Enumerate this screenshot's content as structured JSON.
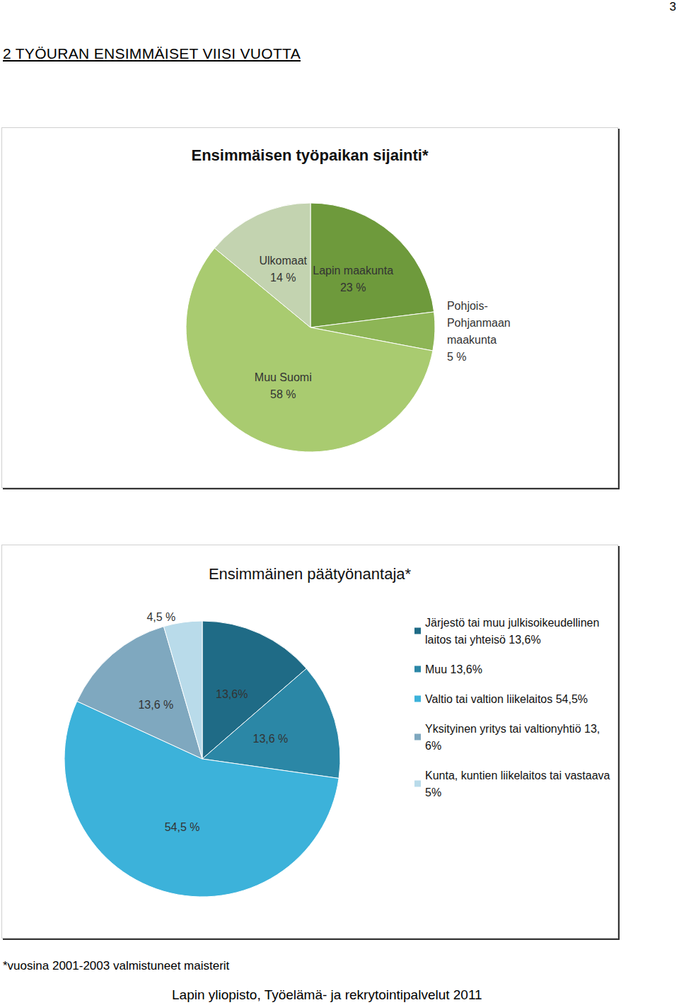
{
  "page": {
    "number": "3",
    "heading": "2 TYÖURAN ENSIMMÄISET VIISI VUOTTA",
    "footnote": "*vuosina 2001-2003 valmistuneet maisterit",
    "footer": "Lapin yliopisto, Työelämä- ja rekrytointipalvelut 2011"
  },
  "chart_data": [
    {
      "type": "pie",
      "title": "Ensimmäisen työpaikan sijainti*",
      "categories": [
        "Lapin maakunta",
        "Pohjois-Pohjanmaan maakunta",
        "Muu Suomi",
        "Ulkomaat"
      ],
      "values": [
        23,
        5,
        58,
        14
      ],
      "value_labels": [
        "23 %",
        "5 %",
        "58 %",
        "14 %"
      ],
      "colors": [
        "#6e9a3c",
        "#8db556",
        "#a9cb70",
        "#c3d3b0"
      ],
      "data_labels": true
    },
    {
      "type": "pie",
      "title": "Ensimmäinen päätyönantaja*",
      "categories": [
        "Järjestö tai muu julkisoikeudellinen laitos tai yhteisö 13,6%",
        "Muu 13,6%",
        "Valtio tai valtion liikelaitos 54,5%",
        "Yksityinen yritys tai valtionyhtiö 13,6%",
        "Kunta, kuntien liikelaitos tai vastaava 5%"
      ],
      "values": [
        13.6,
        13.6,
        54.5,
        13.6,
        4.5
      ],
      "value_labels": [
        "13,6%",
        "13,6 %",
        "54,5 %",
        "13,6 %",
        "4,5 %"
      ],
      "colors": [
        "#1f6b86",
        "#2b87a6",
        "#3cb2da",
        "#7fa8bf",
        "#b9dbea"
      ],
      "data_labels": true,
      "legend": "right"
    }
  ]
}
